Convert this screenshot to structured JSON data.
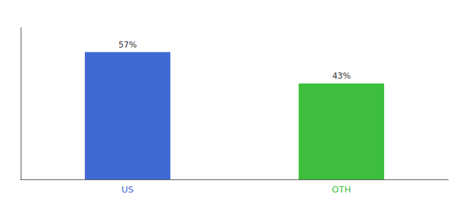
{
  "chart_data": {
    "type": "bar",
    "categories": [
      "US",
      "OTH"
    ],
    "values": [
      57,
      43
    ],
    "value_labels": [
      "57%",
      "43%"
    ],
    "colors": [
      "#4169D4",
      "#3DBF3D"
    ],
    "ylim": [
      0,
      68
    ],
    "data_labels": true,
    "tick_labels": "x",
    "grid": false
  }
}
